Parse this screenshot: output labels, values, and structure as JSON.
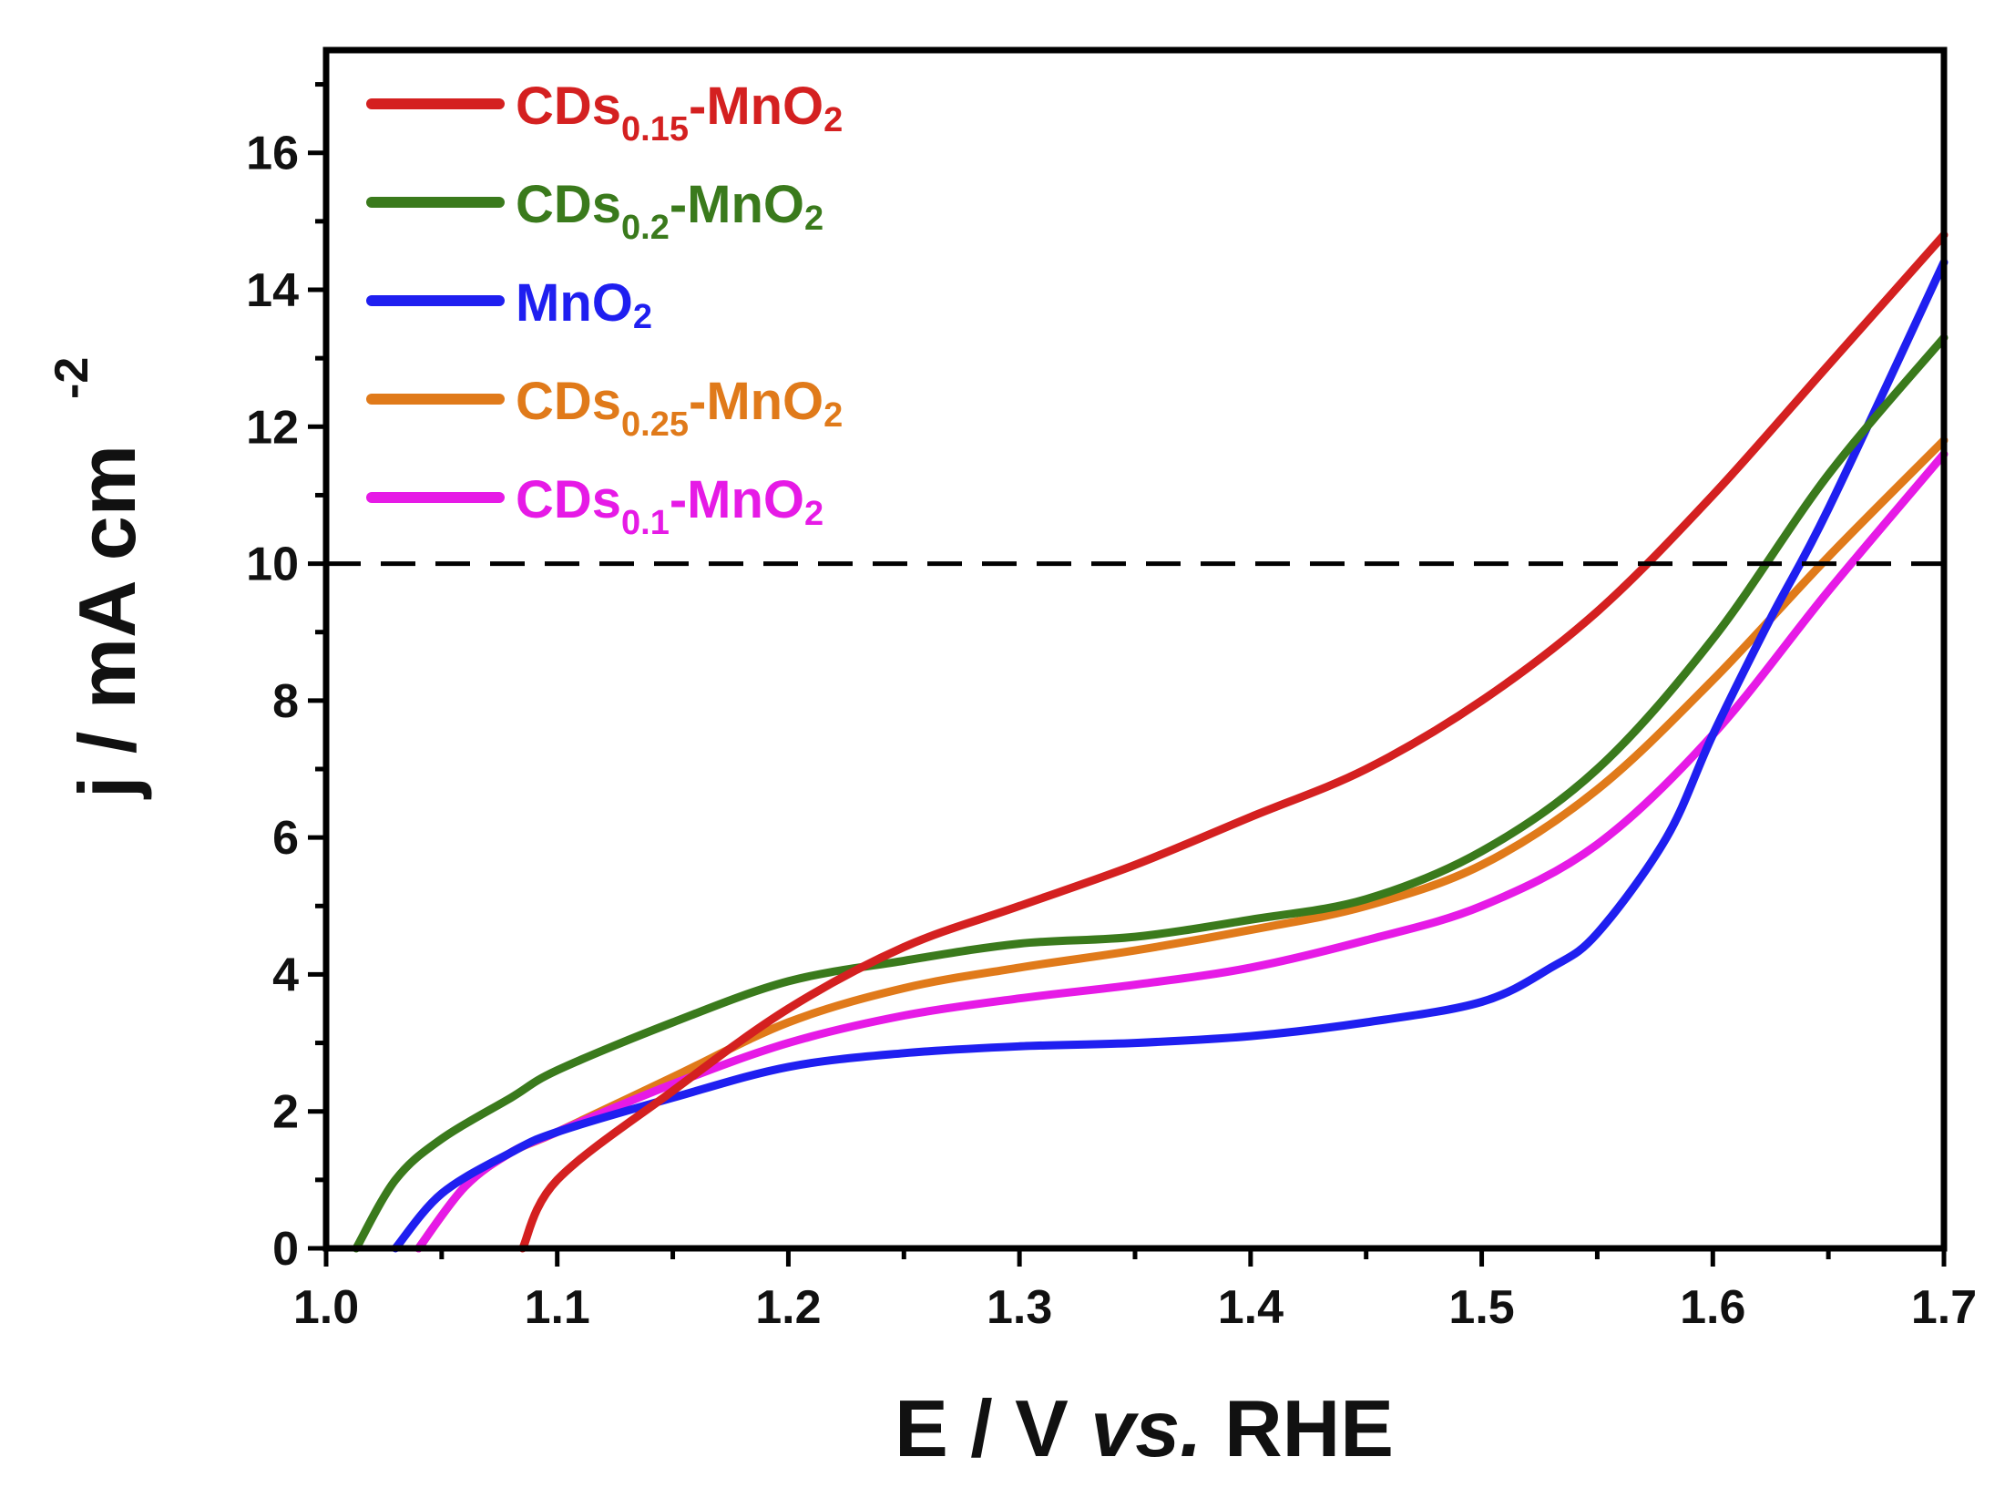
{
  "chart_data": {
    "type": "line",
    "title": "",
    "xlabel": {
      "prefix": "E / V ",
      "italic": "vs.",
      "suffix": " RHE"
    },
    "ylabel": {
      "main": "j / mA cm",
      "superscript": "-2"
    },
    "xlim": [
      1.0,
      1.7
    ],
    "ylim": [
      0,
      17.5
    ],
    "x_ticks": [
      "1.0",
      "1.1",
      "1.2",
      "1.3",
      "1.4",
      "1.5",
      "1.6",
      "1.7"
    ],
    "y_ticks": [
      "0",
      "2",
      "4",
      "6",
      "8",
      "10",
      "12",
      "14",
      "16"
    ],
    "x_tick_values": [
      1.0,
      1.1,
      1.2,
      1.3,
      1.4,
      1.5,
      1.6,
      1.7
    ],
    "y_tick_values": [
      0,
      2,
      4,
      6,
      8,
      10,
      12,
      14,
      16
    ],
    "reference_line": {
      "y": 10,
      "style": "dashed",
      "color": "#000000"
    },
    "legend_position": "top-left",
    "series": [
      {
        "name": "CDs0.15-MnO2",
        "legend": {
          "base": "CDs",
          "sub": "0.15",
          "tail": "-MnO",
          "tail_sub": "2"
        },
        "color": "#d42020",
        "x": [
          1.085,
          1.1,
          1.15,
          1.2,
          1.25,
          1.3,
          1.35,
          1.4,
          1.45,
          1.5,
          1.55,
          1.6,
          1.65,
          1.7
        ],
        "y": [
          0,
          1.0,
          2.3,
          3.5,
          4.4,
          5.0,
          5.6,
          6.3,
          7.0,
          8.0,
          9.3,
          11.0,
          12.9,
          14.8
        ]
      },
      {
        "name": "CDs0.2-MnO2",
        "legend": {
          "base": "CDs",
          "sub": "0.2",
          "tail": "-MnO",
          "tail_sub": "2"
        },
        "color": "#3a7a1c",
        "x": [
          1.013,
          1.03,
          1.05,
          1.08,
          1.1,
          1.15,
          1.2,
          1.25,
          1.3,
          1.35,
          1.4,
          1.45,
          1.5,
          1.55,
          1.6,
          1.65,
          1.7
        ],
        "y": [
          0,
          1.0,
          1.6,
          2.2,
          2.6,
          3.3,
          3.9,
          4.2,
          4.45,
          4.55,
          4.8,
          5.1,
          5.8,
          7.0,
          8.9,
          11.3,
          13.3
        ]
      },
      {
        "name": "MnO2",
        "legend": {
          "base": "MnO",
          "sub": "",
          "tail": "",
          "tail_sub": "2"
        },
        "color": "#1f1ff0",
        "x": [
          1.03,
          1.05,
          1.08,
          1.1,
          1.15,
          1.2,
          1.25,
          1.3,
          1.35,
          1.4,
          1.45,
          1.5,
          1.53,
          1.55,
          1.58,
          1.6,
          1.625,
          1.65,
          1.7
        ],
        "y": [
          0,
          0.8,
          1.4,
          1.7,
          2.2,
          2.65,
          2.85,
          2.95,
          3.0,
          3.1,
          3.3,
          3.6,
          4.1,
          4.6,
          6.0,
          7.5,
          9.2,
          10.8,
          14.4
        ]
      },
      {
        "name": "CDs0.25-MnO2",
        "legend": {
          "base": "CDs",
          "sub": "0.25",
          "tail": "-MnO",
          "tail_sub": "2"
        },
        "color": "#e07a1a",
        "x": [
          1.04,
          1.06,
          1.08,
          1.1,
          1.15,
          1.2,
          1.25,
          1.3,
          1.35,
          1.4,
          1.45,
          1.5,
          1.55,
          1.6,
          1.65,
          1.7
        ],
        "y": [
          0,
          0.9,
          1.4,
          1.7,
          2.5,
          3.3,
          3.8,
          4.1,
          4.35,
          4.65,
          5.0,
          5.6,
          6.7,
          8.3,
          10.1,
          11.8
        ]
      },
      {
        "name": "CDs0.1-MnO2",
        "legend": {
          "base": "CDs",
          "sub": "0.1",
          "tail": "-MnO",
          "tail_sub": "2"
        },
        "color": "#e61ae6",
        "x": [
          1.04,
          1.06,
          1.08,
          1.1,
          1.15,
          1.2,
          1.25,
          1.3,
          1.35,
          1.4,
          1.45,
          1.5,
          1.55,
          1.6,
          1.65,
          1.7
        ],
        "y": [
          0,
          0.9,
          1.4,
          1.7,
          2.4,
          3.0,
          3.4,
          3.65,
          3.85,
          4.1,
          4.5,
          5.0,
          5.9,
          7.5,
          9.6,
          11.6
        ]
      }
    ]
  }
}
